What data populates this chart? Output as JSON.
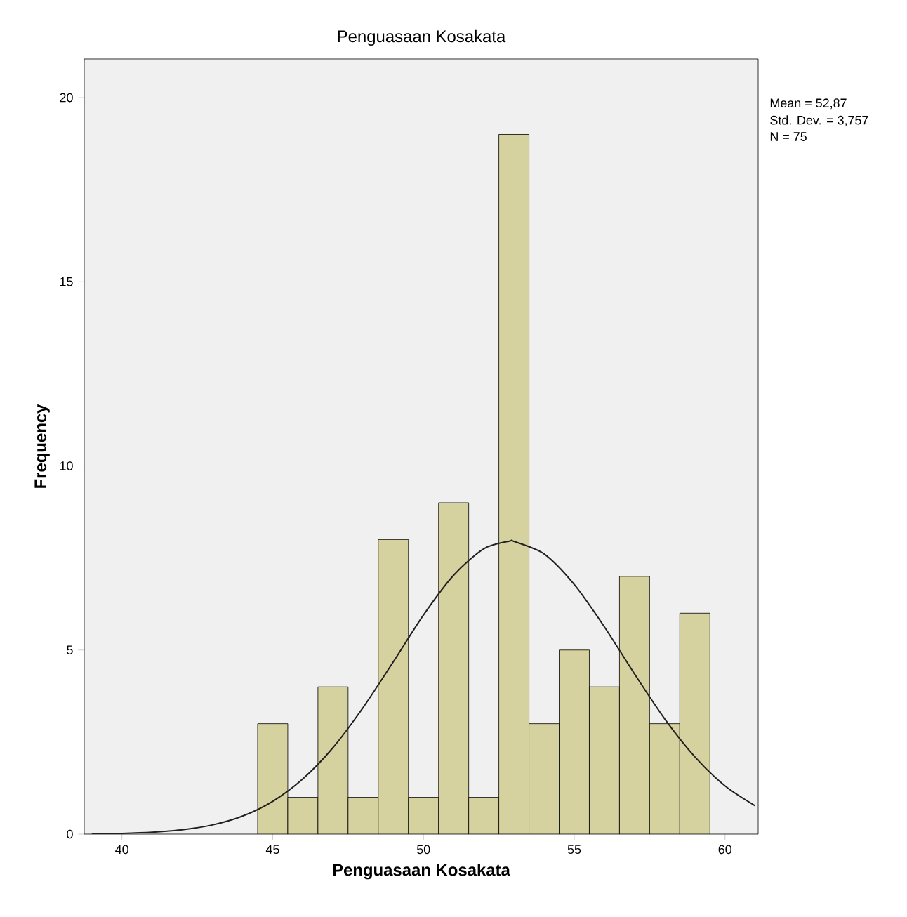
{
  "chart_data": {
    "type": "histogram",
    "title": "Penguasaan Kosakata",
    "xlabel": "Penguasaan Kosakata",
    "ylabel": "Frequency",
    "series": [
      {
        "color": "#d6d2a0",
        "bins": [
          44.5,
          45.5,
          46.5,
          47.5,
          48.5,
          49.5,
          50.5,
          51.5,
          52.5,
          53.5,
          54.5,
          55.5,
          56.5,
          57.5,
          58.5,
          59.5
        ],
        "values": [
          3,
          1,
          4,
          1,
          8,
          1,
          9,
          1,
          19,
          3,
          5,
          4,
          7,
          3,
          6
        ]
      },
      {
        "type": "line",
        "color": "#202020",
        "x": [
          39,
          40,
          41,
          42,
          43,
          44,
          45,
          46,
          47,
          48,
          49,
          50,
          51,
          52,
          52.87,
          53,
          54,
          55,
          56,
          57,
          58,
          59,
          60,
          61
        ],
        "values": [
          0.01,
          0.02,
          0.05,
          0.12,
          0.25,
          0.49,
          0.89,
          1.5,
          2.35,
          3.44,
          4.68,
          5.95,
          7.03,
          7.75,
          7.96,
          7.95,
          7.61,
          6.78,
          5.63,
          4.35,
          3.13,
          2.1,
          1.31,
          0.77
        ]
      }
    ],
    "xlim": [
      38.75,
      61.1
    ],
    "ylim": [
      0,
      21.05
    ],
    "xticks": [
      40,
      45,
      50,
      55,
      60
    ],
    "yticks": [
      0,
      5,
      10,
      15,
      20
    ],
    "annotations": [
      "Mean = 52,87",
      "Std. Dev. = 3,757",
      "N = 75"
    ]
  }
}
